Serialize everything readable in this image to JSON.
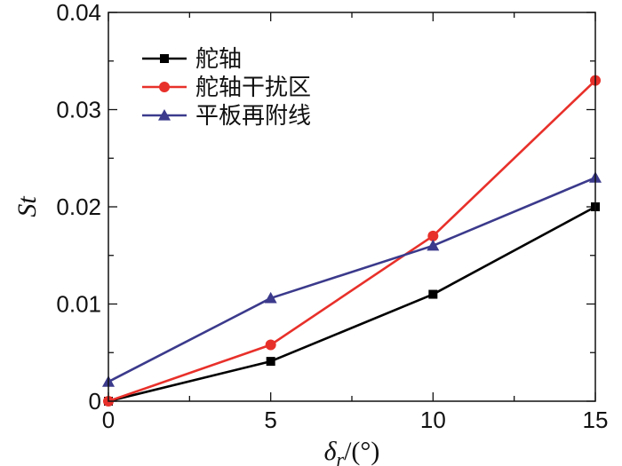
{
  "chart_data": {
    "type": "line",
    "title": "",
    "xlabel": {
      "symbol": "δ",
      "subscript": "r",
      "unit": "/(°)"
    },
    "ylabel": "St",
    "xlim": [
      0,
      15
    ],
    "ylim": [
      0,
      0.04
    ],
    "x_ticks": [
      0,
      5,
      10,
      15
    ],
    "y_ticks": [
      0,
      0.01,
      0.02,
      0.03,
      0.04
    ],
    "x_tick_labels": [
      "0",
      "5",
      "10",
      "15"
    ],
    "y_tick_labels": [
      "0",
      "0.01",
      "0.02",
      "0.03",
      "0.04"
    ],
    "grid": false,
    "legend_position": "top-left",
    "series": [
      {
        "name": "舵轴",
        "color": "#000000",
        "marker": "square",
        "x": [
          0,
          5,
          10,
          15
        ],
        "y": [
          0.0,
          0.0041,
          0.011,
          0.02
        ]
      },
      {
        "name": "舵轴干扰区",
        "color": "#e8302a",
        "marker": "circle",
        "x": [
          0,
          5,
          10,
          15
        ],
        "y": [
          0.0,
          0.0058,
          0.017,
          0.033
        ]
      },
      {
        "name": "平板再附线",
        "color": "#3b3a8c",
        "marker": "triangle",
        "x": [
          0,
          5,
          10,
          15
        ],
        "y": [
          0.002,
          0.0106,
          0.016,
          0.023
        ]
      }
    ]
  }
}
